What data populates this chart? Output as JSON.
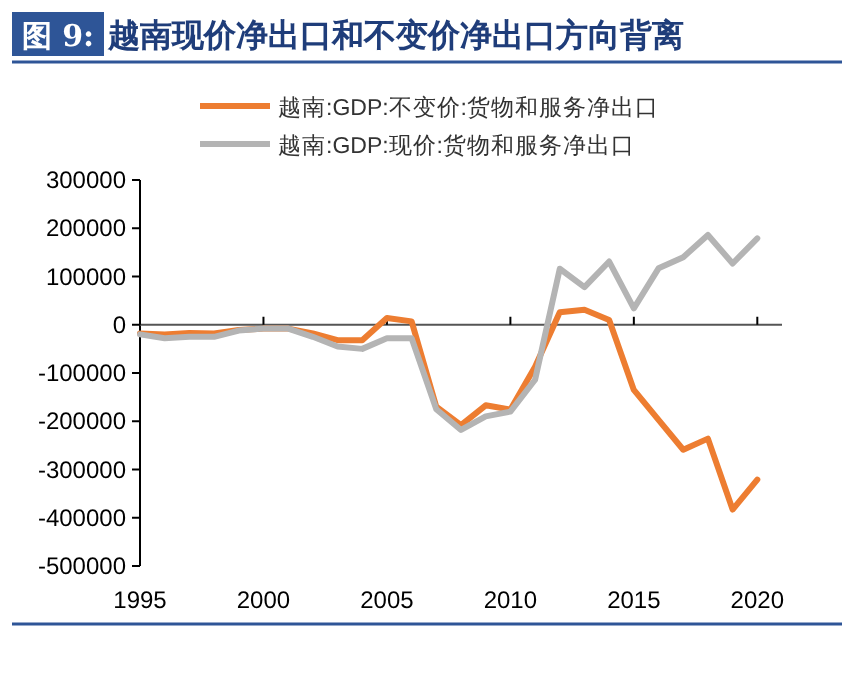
{
  "chart_data": {
    "type": "line",
    "title": "越南现价净出口和不变价净出口方向背离",
    "annotations": [
      "图 9:"
    ],
    "x": [
      1995,
      1996,
      1997,
      1998,
      1999,
      2000,
      2001,
      2002,
      2003,
      2004,
      2005,
      2006,
      2007,
      2008,
      2009,
      2010,
      2011,
      2012,
      2013,
      2014,
      2015,
      2016,
      2017,
      2018,
      2019,
      2020
    ],
    "series": [
      {
        "name": "越南:GDP:不变价:货物和服务净出口",
        "color": "#ed7d31",
        "values": [
          -18000,
          -20000,
          -17000,
          -18000,
          -11000,
          -8000,
          -8000,
          -18000,
          -32000,
          -32000,
          14000,
          7000,
          -170000,
          -208000,
          -167000,
          -176000,
          -87000,
          26000,
          31000,
          10000,
          -135000,
          -197000,
          -259000,
          -236000,
          -383000,
          -321000
        ]
      },
      {
        "name": "越南:GDP:现价:货物和服务净出口",
        "color": "#b4b4b4",
        "values": [
          -20000,
          -28000,
          -25000,
          -25000,
          -12000,
          -8000,
          -8000,
          -25000,
          -45000,
          -50000,
          -28000,
          -28000,
          -175000,
          -218000,
          -190000,
          -180000,
          -114000,
          116000,
          78000,
          131000,
          34000,
          117000,
          140000,
          186000,
          127000,
          179000
        ]
      }
    ],
    "xlim": [
      1995,
      2021
    ],
    "ylim": [
      -500000,
      300000
    ],
    "xticks": [
      1995,
      2000,
      2005,
      2010,
      2015,
      2020
    ],
    "yticks": [
      -500000,
      -400000,
      -300000,
      -200000,
      -100000,
      0,
      100000,
      200000,
      300000
    ],
    "legend": "top"
  }
}
